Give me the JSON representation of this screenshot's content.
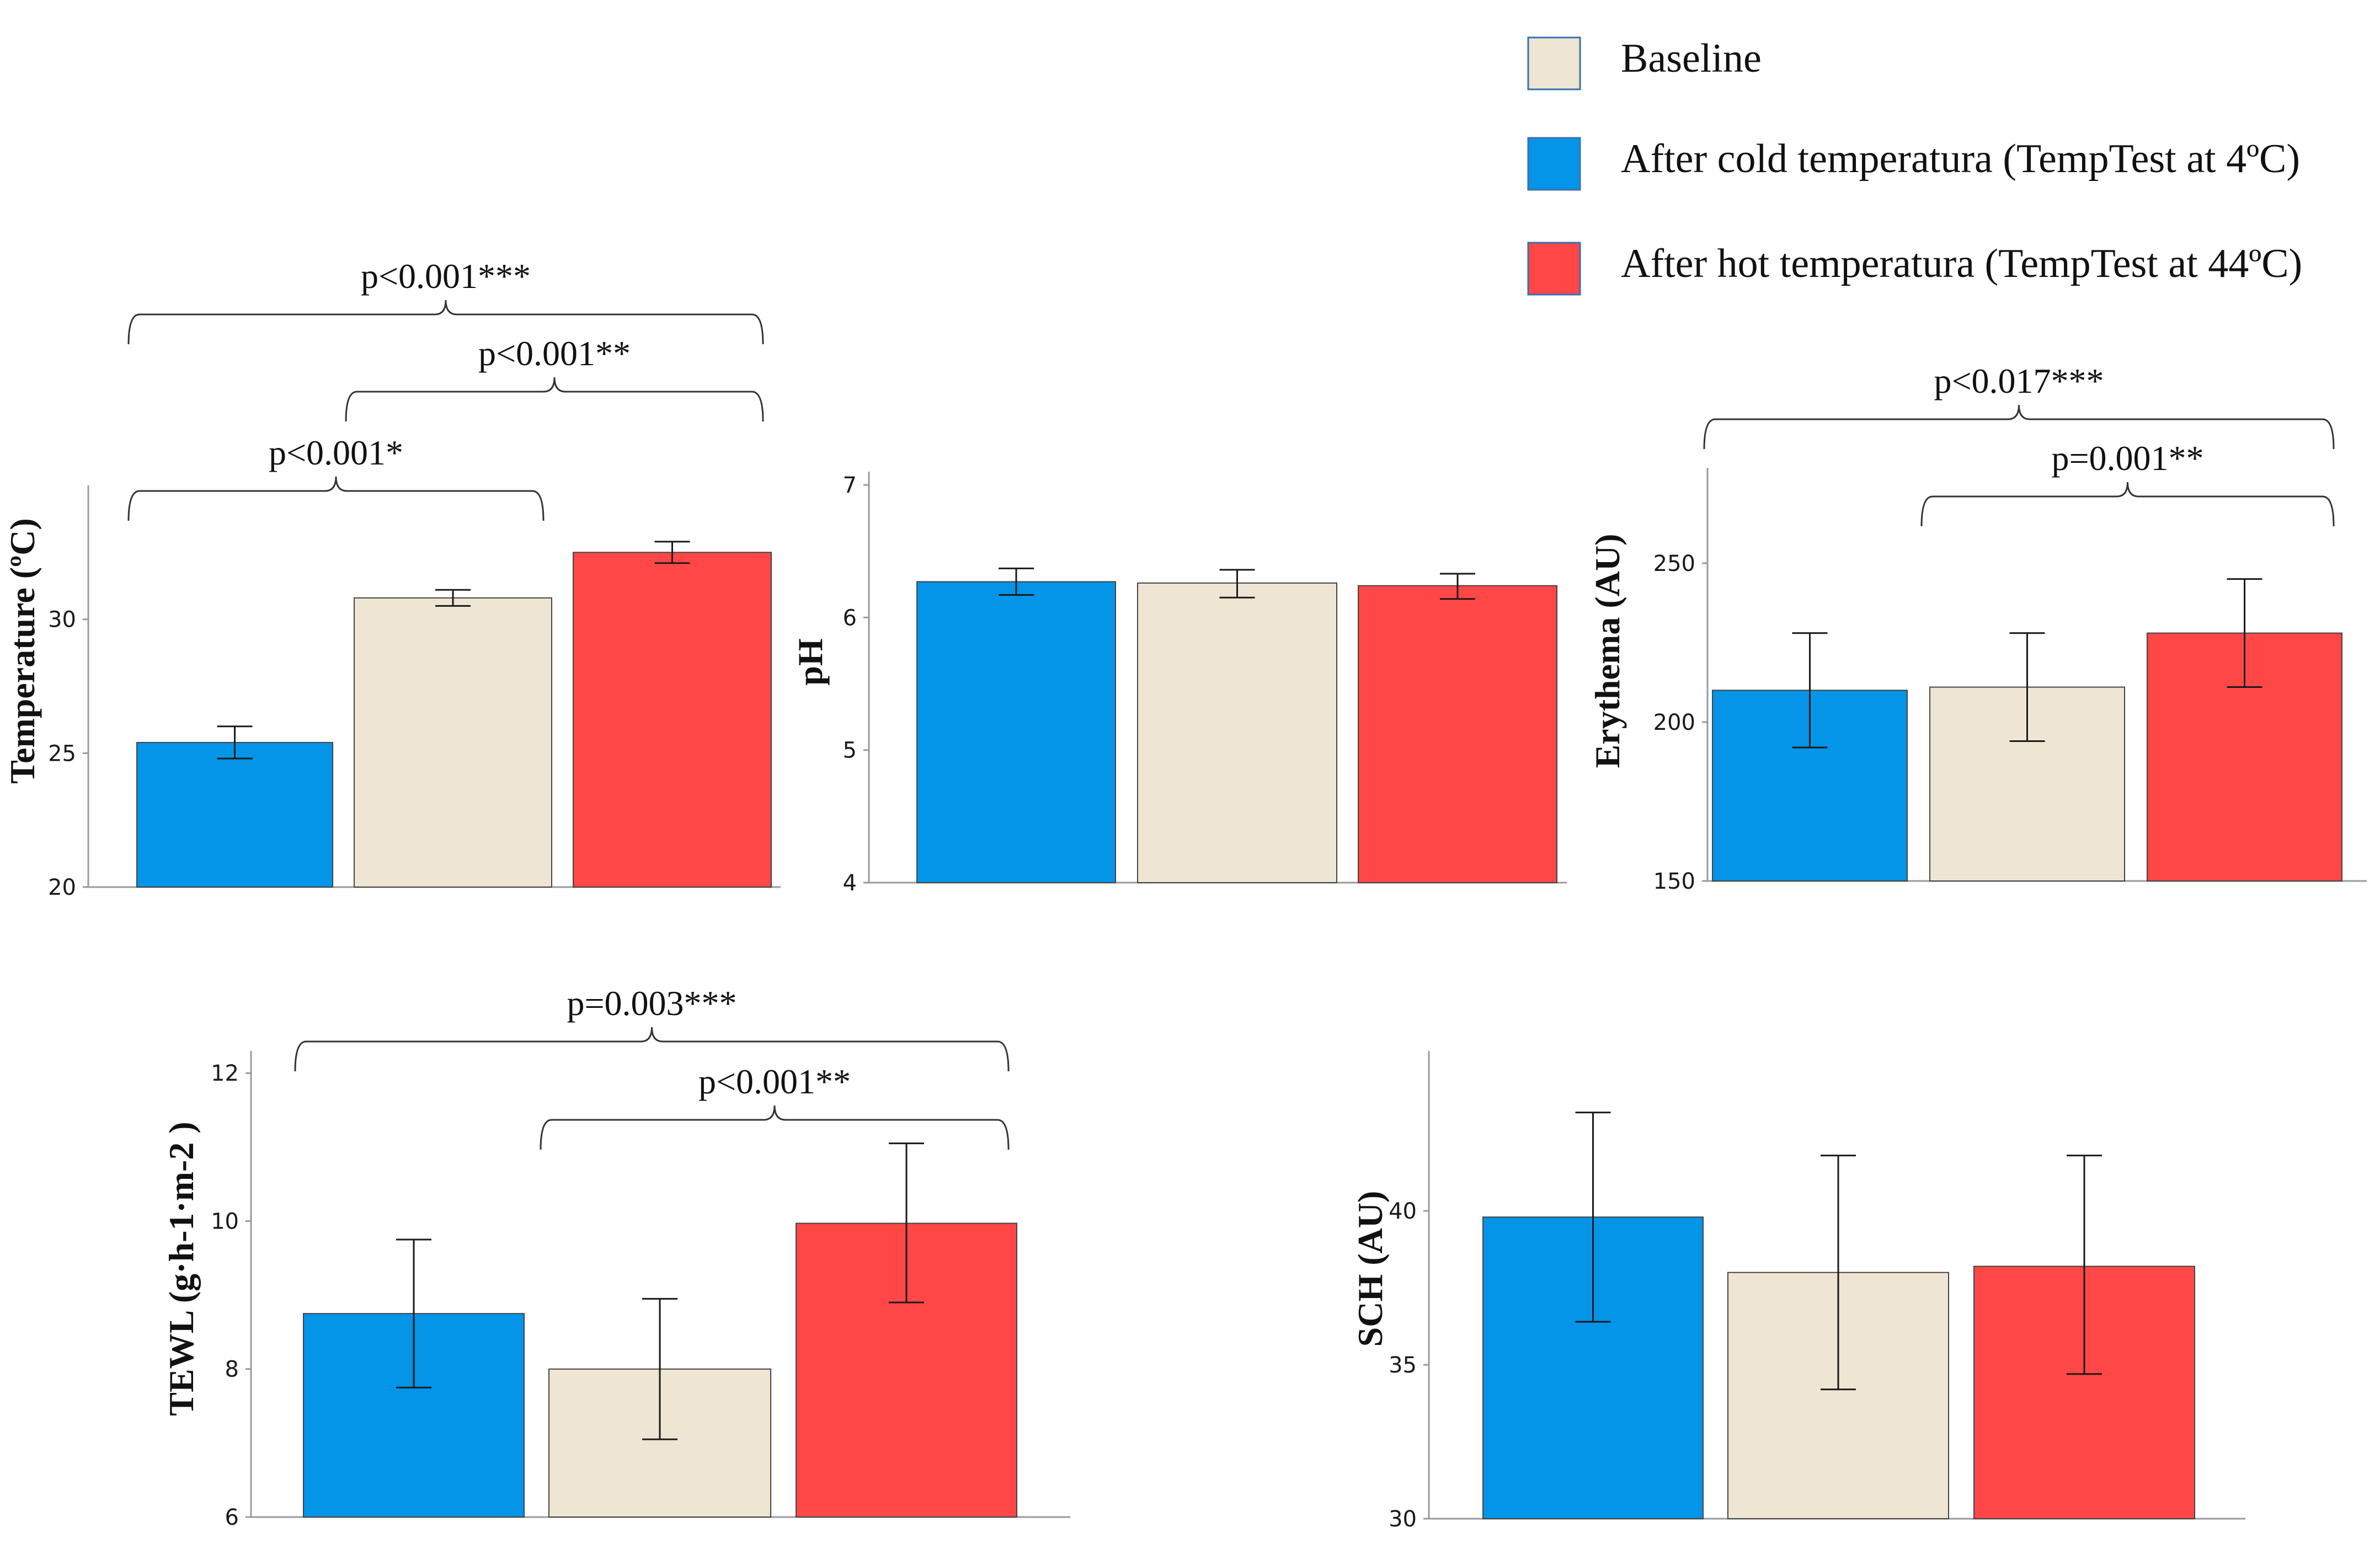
{
  "legend": {
    "items": [
      {
        "label": "Baseline",
        "color": "#EEE6D2"
      },
      {
        "label": "After cold temperatura (TempTest at 4ºC)",
        "color": "#0494E8"
      },
      {
        "label": "After hot temperatura (TempTest at 44ºC)",
        "color": "#FF4747"
      }
    ]
  },
  "chart_data": [
    {
      "type": "bar",
      "id": "temperature",
      "ylabel": "Temperature (ºC)",
      "ylim": [
        20,
        35
      ],
      "yticks": [
        20,
        25,
        30
      ],
      "bars": [
        {
          "group": "After cold temperatura (TempTest at 4ºC)",
          "value": 25.4,
          "err_low": 24.8,
          "err_high": 26.0,
          "color": "#0494E8"
        },
        {
          "group": "Baseline",
          "value": 30.8,
          "err_low": 30.5,
          "err_high": 31.1,
          "color": "#EEE6D2"
        },
        {
          "group": "After hot temperatura (TempTest at 44ºC)",
          "value": 32.5,
          "err_low": 32.1,
          "err_high": 32.9,
          "color": "#FF4747"
        }
      ],
      "annotations": [
        {
          "text": "p<0.001***",
          "from": 0,
          "to": 2,
          "level": 3
        },
        {
          "text": "p<0.001**",
          "from": 1,
          "to": 2,
          "level": 2
        },
        {
          "text": "p<0.001*",
          "from": 0,
          "to": 1,
          "level": 1
        }
      ]
    },
    {
      "type": "bar",
      "id": "ph",
      "ylabel": "pH",
      "ylim": [
        4,
        7.1
      ],
      "yticks": [
        4,
        5,
        6,
        7
      ],
      "bars": [
        {
          "group": "After cold temperatura (TempTest at 4ºC)",
          "value": 6.27,
          "err_low": 6.17,
          "err_high": 6.37,
          "color": "#0494E8"
        },
        {
          "group": "Baseline",
          "value": 6.26,
          "err_low": 6.15,
          "err_high": 6.36,
          "color": "#EEE6D2"
        },
        {
          "group": "After hot temperatura (TempTest at 44ºC)",
          "value": 6.24,
          "err_low": 6.14,
          "err_high": 6.33,
          "color": "#FF4747"
        }
      ],
      "annotations": []
    },
    {
      "type": "bar",
      "id": "erythema",
      "ylabel": "Erythema (AU)",
      "ylim": [
        150,
        280
      ],
      "yticks": [
        150,
        200,
        250
      ],
      "bars": [
        {
          "group": "After cold temperatura (TempTest at 4ºC)",
          "value": 210,
          "err_low": 192,
          "err_high": 228,
          "color": "#0494E8"
        },
        {
          "group": "Baseline",
          "value": 211,
          "err_low": 194,
          "err_high": 228,
          "color": "#EEE6D2"
        },
        {
          "group": "After hot temperatura (TempTest at 44ºC)",
          "value": 228,
          "err_low": 211,
          "err_high": 245,
          "color": "#FF4747"
        }
      ],
      "annotations": [
        {
          "text": "p<0.017***",
          "from": 0,
          "to": 2,
          "level": 2
        },
        {
          "text": "p=0.001**",
          "from": 1,
          "to": 2,
          "level": 1
        }
      ]
    },
    {
      "type": "bar",
      "id": "tewl",
      "ylabel": "TEWL (g·h-1·m-2 )",
      "ylim": [
        6,
        12.3
      ],
      "yticks": [
        6,
        8,
        10,
        12
      ],
      "bars": [
        {
          "group": "After cold temperatura (TempTest at 4ºC)",
          "value": 8.75,
          "err_low": 7.75,
          "err_high": 9.75,
          "color": "#0494E8"
        },
        {
          "group": "Baseline",
          "value": 8.0,
          "err_low": 7.05,
          "err_high": 8.95,
          "color": "#EEE6D2"
        },
        {
          "group": "After hot temperatura (TempTest at 44ºC)",
          "value": 9.97,
          "err_low": 8.9,
          "err_high": 11.05,
          "color": "#FF4747"
        }
      ],
      "annotations": [
        {
          "text": "p=0.003***",
          "from": 0,
          "to": 2,
          "level": 2
        },
        {
          "text": "p<0.001**",
          "from": 1,
          "to": 2,
          "level": 1
        }
      ]
    },
    {
      "type": "bar",
      "id": "sch",
      "ylabel": "SCH (AU)",
      "ylim": [
        30,
        45.2
      ],
      "yticks": [
        30,
        35,
        40
      ],
      "bars": [
        {
          "group": "After cold temperatura (TempTest at 4ºC)",
          "value": 39.8,
          "err_low": 36.4,
          "err_high": 43.2,
          "color": "#0494E8"
        },
        {
          "group": "Baseline",
          "value": 38.0,
          "err_low": 34.2,
          "err_high": 41.8,
          "color": "#EEE6D2"
        },
        {
          "group": "After hot temperatura (TempTest at 44ºC)",
          "value": 38.2,
          "err_low": 34.7,
          "err_high": 41.8,
          "color": "#FF4747"
        }
      ],
      "annotations": []
    }
  ]
}
